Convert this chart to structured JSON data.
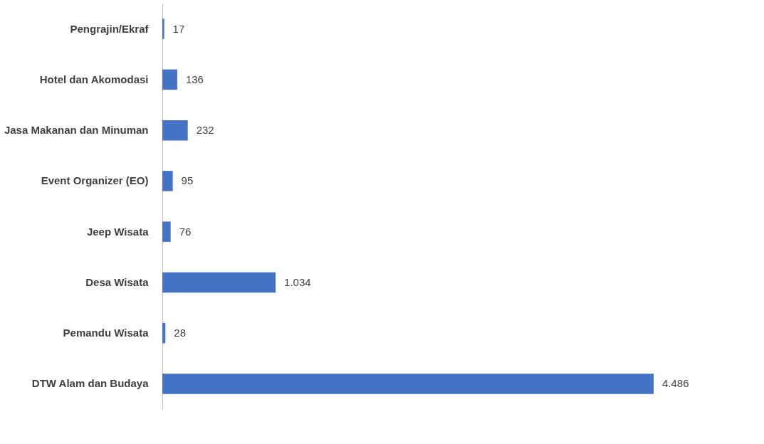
{
  "chart_data": {
    "type": "bar",
    "orientation": "horizontal",
    "categories": [
      "Pengrajin/Ekraf",
      "Hotel dan Akomodasi",
      "Jasa Makanan dan Minuman",
      "Event Organizer (EO)",
      "Jeep Wisata",
      "Desa Wisata",
      "Pemandu Wisata",
      "DTW Alam dan Budaya"
    ],
    "values": [
      17,
      136,
      232,
      95,
      76,
      1034,
      28,
      4486
    ],
    "value_labels": [
      "17",
      "136",
      "232",
      "95",
      "76",
      "1.034",
      "28",
      "4.486"
    ],
    "color": "#4472c4"
  }
}
